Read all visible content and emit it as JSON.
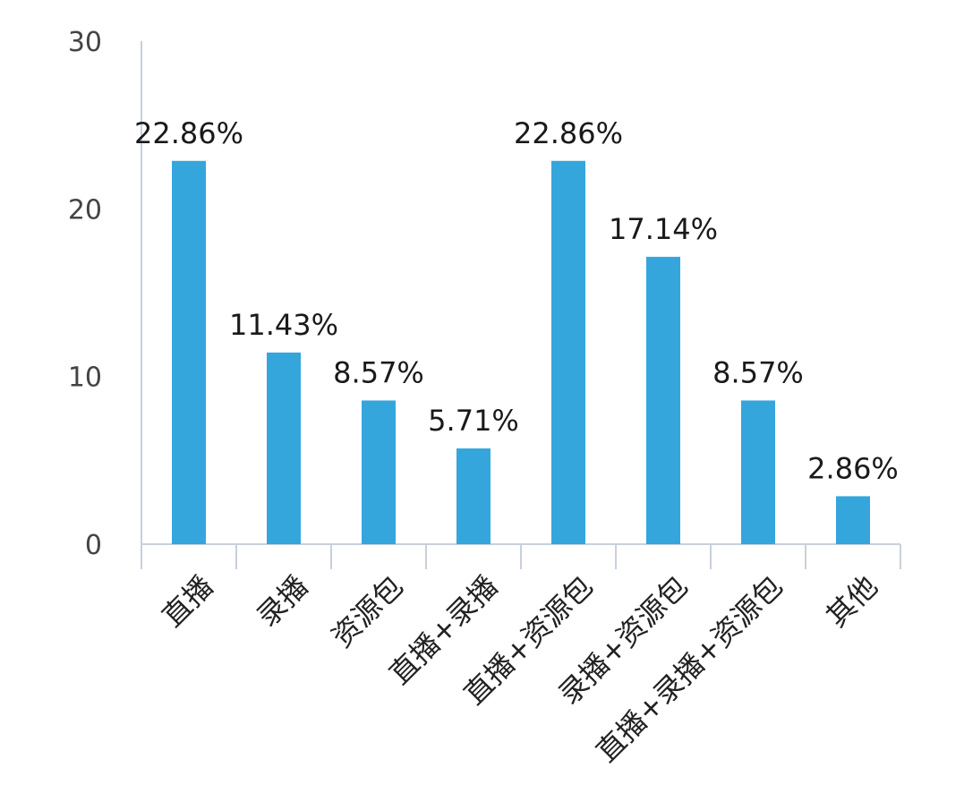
{
  "chart_data": {
    "type": "bar",
    "categories": [
      "直播",
      "录播",
      "资源包",
      "直播+录播",
      "直播+资源包",
      "录播+资源包",
      "直播+录播+资源包",
      "其他"
    ],
    "values": [
      22.86,
      11.43,
      8.57,
      5.71,
      22.86,
      17.14,
      8.57,
      2.86
    ],
    "data_labels": [
      "22.86%",
      "11.43%",
      "8.57%",
      "5.71%",
      "22.86%",
      "17.14%",
      "8.57%",
      "2.86%"
    ],
    "y_ticks": [
      "0",
      "10",
      "20",
      "30"
    ],
    "ylim": [
      0,
      30
    ],
    "grid": false,
    "bar_color": "#35a6dc",
    "axis_color": "#c8d0dc"
  }
}
